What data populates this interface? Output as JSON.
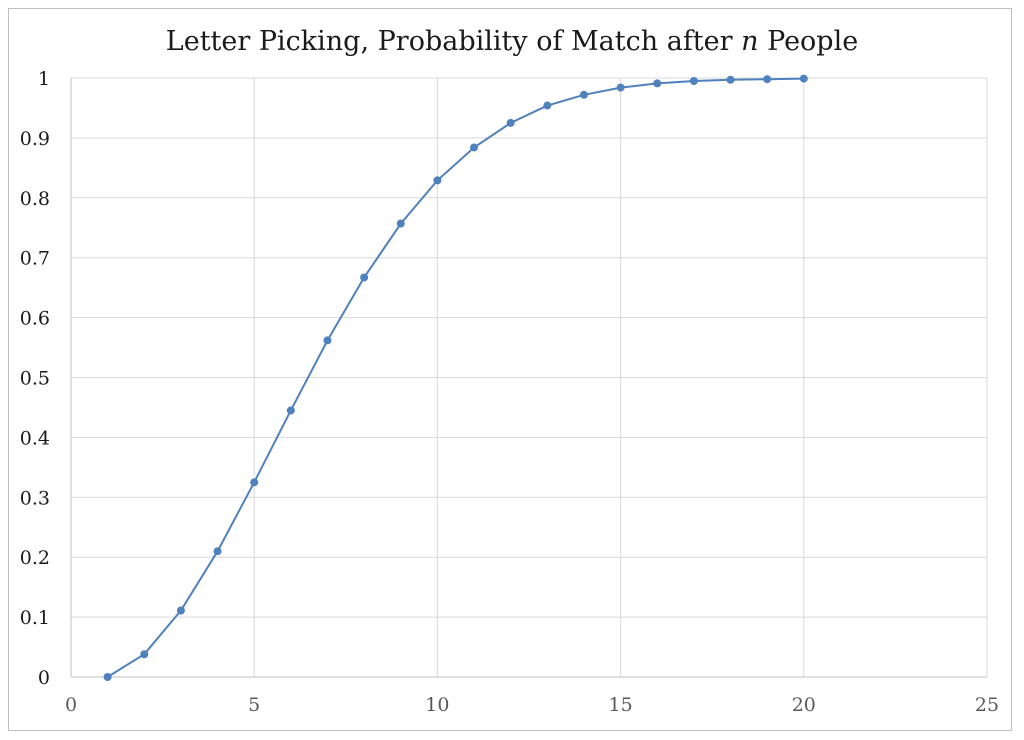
{
  "chart_data": {
    "type": "scatter",
    "title": {
      "prefix": "Letter Picking, Probability of Match after ",
      "italic": "n",
      "suffix": " People"
    },
    "xlabel": "",
    "ylabel": "",
    "xlim": [
      0,
      25
    ],
    "ylim": [
      0,
      1
    ],
    "xticks": [
      "0",
      "5",
      "10",
      "15",
      "20",
      "25"
    ],
    "yticks": [
      "0",
      "0.1",
      "0.2",
      "0.3",
      "0.4",
      "0.5",
      "0.6",
      "0.7",
      "0.8",
      "0.9",
      "1"
    ],
    "grid": true,
    "legend": "none",
    "series": [
      {
        "color": "#4f81bd",
        "x": [
          1,
          2,
          3,
          4,
          5,
          6,
          7,
          8,
          9,
          10,
          11,
          12,
          13,
          14,
          15,
          16,
          17,
          18,
          19,
          20
        ],
        "y": [
          0,
          0.038,
          0.111,
          0.21,
          0.325,
          0.445,
          0.562,
          0.667,
          0.757,
          0.829,
          0.884,
          0.925,
          0.954,
          0.972,
          0.984,
          0.991,
          0.995,
          0.997,
          0.998,
          0.999
        ]
      }
    ]
  }
}
